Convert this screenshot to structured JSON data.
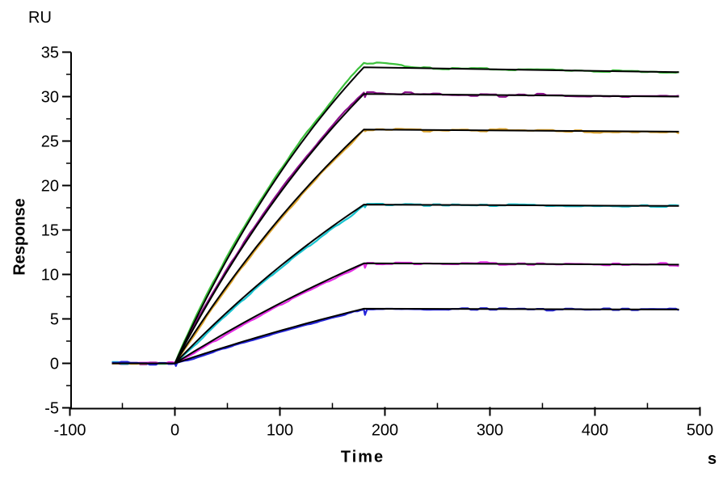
{
  "chart_data": {
    "type": "line",
    "title": "",
    "xlabel": "Time",
    "x_unit": "s",
    "ylabel": "Response",
    "y_unit": "RU",
    "xlim": [
      -100,
      500
    ],
    "ylim": [
      -5,
      35
    ],
    "x_major_ticks": [
      -100,
      0,
      100,
      200,
      300,
      400,
      500
    ],
    "y_major_ticks": [
      -5,
      0,
      5,
      10,
      15,
      20,
      25,
      30,
      35
    ],
    "grid": false,
    "legend": "none",
    "phases": {
      "baseline_start_s": -60,
      "association_start_s": 0,
      "association_end_s": 180,
      "dissociation_end_s": 480
    },
    "fit_color": "#000000",
    "series": [
      {
        "id": "trace-1",
        "color_name": "green",
        "color": "#3cc13c",
        "r_plateau": 33.3,
        "r_end": 32.75,
        "k_assoc": 0.004,
        "rise_offset": 0.3,
        "overshoot": 0.5,
        "corner_spike": 0,
        "seed": 3
      },
      {
        "id": "trace-2",
        "color_name": "purple",
        "color": "#8a0f8a",
        "r_plateau": 30.3,
        "r_end": 30.0,
        "k_assoc": 0.0035,
        "rise_offset": 0.25,
        "overshoot": 0.12,
        "corner_spike": -0.35,
        "seed": 7
      },
      {
        "id": "trace-3",
        "color_name": "orange",
        "color": "#dba22b",
        "r_plateau": 26.3,
        "r_end": 26.05,
        "k_assoc": 0.003,
        "rise_offset": -0.22,
        "overshoot": 0,
        "corner_spike": -0.2,
        "seed": 11
      },
      {
        "id": "trace-4",
        "color_name": "cyan",
        "color": "#17c3cf",
        "r_plateau": 17.85,
        "r_end": 17.7,
        "k_assoc": 0.0025,
        "rise_offset": -0.25,
        "overshoot": 0,
        "corner_spike": -0.3,
        "seed": 17
      },
      {
        "id": "trace-5",
        "color_name": "magenta",
        "color": "#e32be3",
        "r_plateau": 11.25,
        "r_end": 11.1,
        "k_assoc": 0.002,
        "rise_offset": -0.2,
        "overshoot": 0,
        "corner_spike": -0.5,
        "seed": 23
      },
      {
        "id": "trace-6",
        "color_name": "blue",
        "color": "#2424d8",
        "r_plateau": 6.15,
        "r_end": 6.05,
        "k_assoc": 0.0018,
        "rise_offset": -0.15,
        "overshoot": 0,
        "corner_spike": -0.7,
        "start_dip": -0.3,
        "seed": 29
      }
    ]
  }
}
